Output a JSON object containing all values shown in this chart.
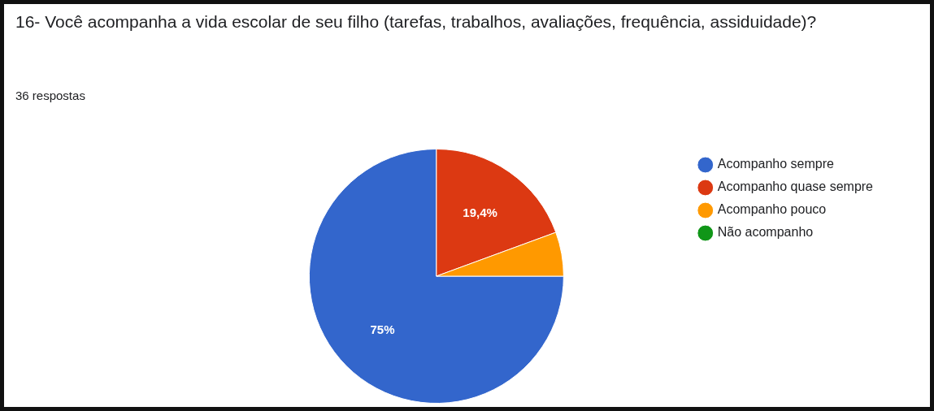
{
  "chart_data": {
    "type": "pie",
    "title": "16- Você acompanha a vida escolar de seu filho (tarefas, trabalhos, avaliações, frequência, assiduidade)?",
    "subtitle": "36 respostas",
    "categories": [
      "Acompanho sempre",
      "Acompanho quase sempre",
      "Acompanho pouco",
      "Não acompanho"
    ],
    "values": [
      75,
      19.4,
      5.6,
      0
    ],
    "colors": [
      "#3366cc",
      "#dc3912",
      "#ff9900",
      "#109618"
    ],
    "value_labels": [
      "75%",
      "19,4%",
      null,
      null
    ],
    "legend": "right"
  }
}
